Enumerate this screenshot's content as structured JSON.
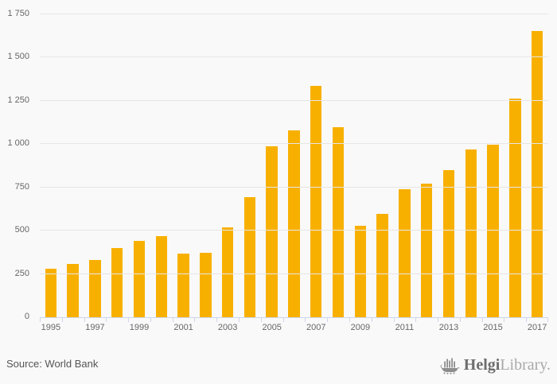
{
  "chart_data": {
    "type": "bar",
    "title": "",
    "xlabel": "",
    "ylabel": "",
    "categories": [
      "1995",
      "1996",
      "1997",
      "1998",
      "1999",
      "2000",
      "2001",
      "2002",
      "2003",
      "2004",
      "2005",
      "2006",
      "2007",
      "2008",
      "2009",
      "2010",
      "2011",
      "2012",
      "2013",
      "2014",
      "2015",
      "2016",
      "2017"
    ],
    "values": [
      280,
      310,
      330,
      400,
      440,
      470,
      368,
      373,
      520,
      693,
      987,
      1078,
      1335,
      1097,
      528,
      595,
      738,
      772,
      848,
      967,
      997,
      1263,
      1655
    ],
    "ylim": [
      0,
      1750
    ],
    "y_tick_values": [
      0,
      250,
      500,
      750,
      1000,
      1250,
      1500,
      1750
    ],
    "y_tick_labels": [
      "0",
      "250",
      "500",
      "750",
      "1 000",
      "1 250",
      "1 500",
      "1 750"
    ],
    "x_label_step": 2,
    "grid": true,
    "legend_position": "none",
    "bar_color": "#f8b000",
    "axis_color": "#ccd6eb",
    "gridline_color": "#e6e6e6",
    "label_color": "#666666"
  },
  "footer": {
    "source": "Source: World Bank",
    "logo_bold": "Helgi",
    "logo_light": "Library."
  }
}
